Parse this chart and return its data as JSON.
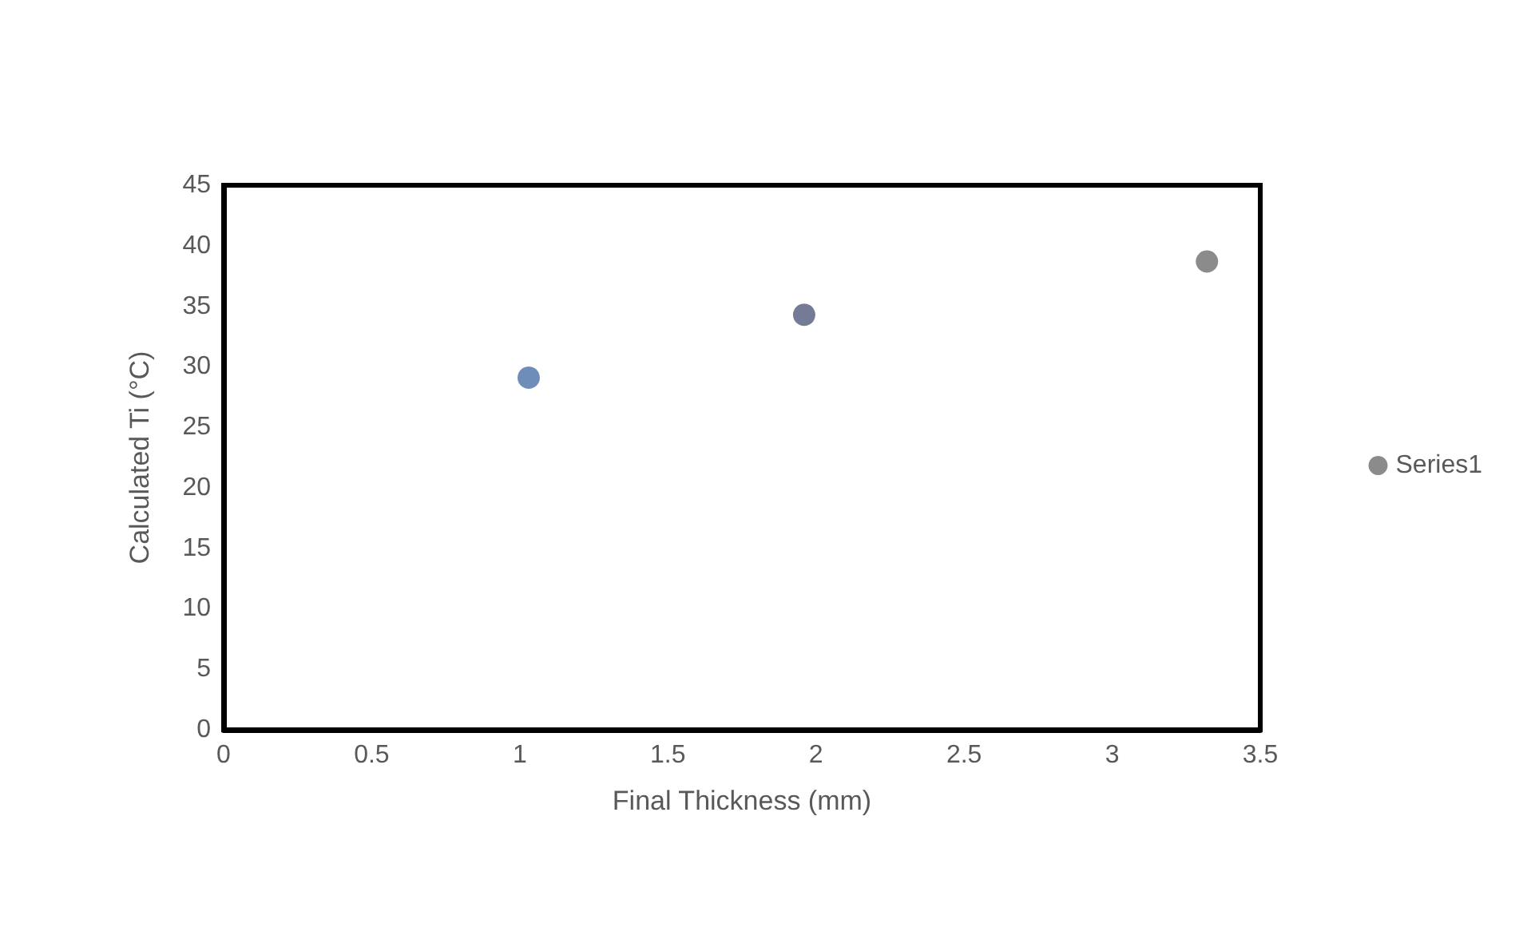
{
  "chart_data": {
    "type": "scatter",
    "xlabel": "Final Thickness (mm)",
    "ylabel": "Calculated Ti (°C)",
    "xlim": [
      0,
      3.5
    ],
    "xticks": [
      0,
      0.5,
      1,
      1.5,
      2,
      2.5,
      3,
      3.5
    ],
    "ylim": [
      0,
      45
    ],
    "yticks": [
      0,
      5,
      10,
      15,
      20,
      25,
      30,
      35,
      40,
      45
    ],
    "series": [
      {
        "name": "Series1",
        "color": "#6e6e6e",
        "x": [
          1.03,
          1.96,
          3.32
        ],
        "values": [
          29.1,
          34.3,
          38.7
        ],
        "colors": [
          "#4a72a8",
          "#505a7c",
          "#6e6e6e"
        ]
      }
    ],
    "marker": "circle",
    "grid": false,
    "legend": "right"
  }
}
